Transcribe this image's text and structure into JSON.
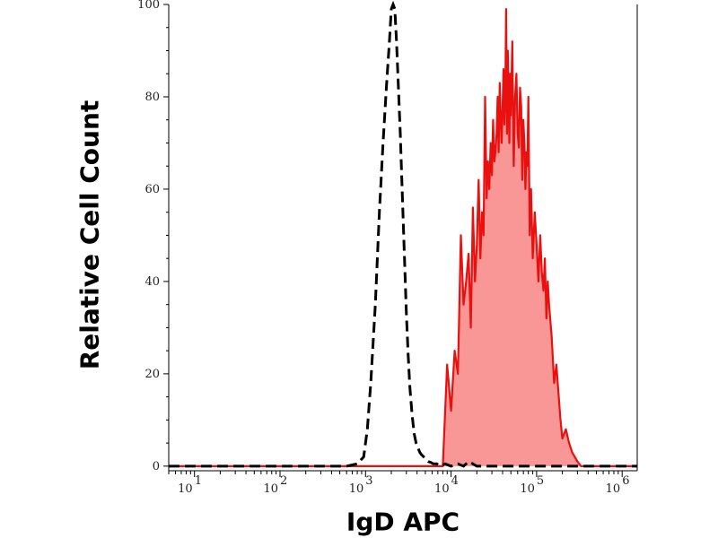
{
  "chart_data": {
    "type": "area",
    "title": "",
    "xlabel": "IgD APC",
    "ylabel": "Relative Cell Count",
    "x_scale": "log",
    "xlim": [
      5,
      1500000
    ],
    "ylim": [
      -1,
      100
    ],
    "x_ticks": [
      {
        "base": "10",
        "exp": "1",
        "value": 10
      },
      {
        "base": "10",
        "exp": "2",
        "value": 100
      },
      {
        "base": "10",
        "exp": "3",
        "value": 1000
      },
      {
        "base": "10",
        "exp": "4",
        "value": 10000
      },
      {
        "base": "10",
        "exp": "5",
        "value": 100000
      },
      {
        "base": "10",
        "exp": "6",
        "value": 1000000
      }
    ],
    "y_ticks": [
      "0",
      "20",
      "40",
      "60",
      "80",
      "100"
    ],
    "grid": false,
    "series": [
      {
        "style": "dashed",
        "color": "#000000",
        "filled": false,
        "x": [
          5,
          600,
          800,
          950,
          1050,
          1150,
          1300,
          1450,
          1600,
          1750,
          1900,
          2000,
          2100,
          2200,
          2300,
          2400,
          2550,
          2700,
          2850,
          3000,
          3150,
          3300,
          3500,
          3700,
          3900,
          4100,
          4300,
          4500,
          4800,
          5100,
          5400,
          5800,
          6200,
          6800,
          7500,
          8500,
          10000,
          12000,
          14000,
          16000,
          18000,
          20000,
          1500000
        ],
        "y": [
          0,
          0,
          0.5,
          2,
          8,
          18,
          35,
          55,
          70,
          82,
          92,
          99,
          100,
          99,
          92,
          84,
          72,
          58,
          45,
          33,
          24,
          17,
          11,
          7,
          5,
          4,
          3,
          2.5,
          2,
          1.5,
          1,
          0.8,
          0.5,
          0.5,
          0,
          0.5,
          0,
          0.5,
          0,
          1,
          0.5,
          0,
          0
        ]
      },
      {
        "style": "solid",
        "color": "#e8110f",
        "fill": "#f99696",
        "filled": true,
        "x": [
          5,
          8000,
          9000,
          10000,
          11000,
          12000,
          13000,
          14000,
          15000,
          16000,
          17000,
          18000,
          19000,
          20000,
          21000,
          22000,
          23000,
          24000,
          25000,
          26000,
          27000,
          28000,
          29000,
          30000,
          31000,
          32000,
          33000,
          34000,
          35000,
          36000,
          37000,
          38000,
          39000,
          40000,
          41000,
          42000,
          43000,
          44000,
          45000,
          46000,
          47000,
          48000,
          49000,
          50000,
          52000,
          54000,
          56000,
          58000,
          60000,
          62000,
          64000,
          66000,
          68000,
          70000,
          72000,
          74000,
          76000,
          78000,
          80000,
          83000,
          86000,
          90000,
          95000,
          100000,
          105000,
          110000,
          115000,
          120000,
          125000,
          130000,
          135000,
          140000,
          150000,
          160000,
          170000,
          180000,
          190000,
          200000,
          220000,
          240000,
          260000,
          280000,
          300000,
          330000,
          1500000
        ],
        "y": [
          0,
          0,
          22,
          12,
          25,
          20,
          50,
          35,
          40,
          46,
          30,
          56,
          40,
          48,
          62,
          45,
          55,
          50,
          80,
          58,
          66,
          60,
          70,
          63,
          75,
          66,
          68,
          72,
          80,
          68,
          83,
          75,
          70,
          78,
          86,
          74,
          80,
          99,
          72,
          90,
          81,
          70,
          85,
          76,
          92,
          65,
          80,
          85,
          72,
          69,
          82,
          78,
          62,
          75,
          70,
          60,
          68,
          65,
          80,
          50,
          60,
          45,
          55,
          48,
          40,
          50,
          42,
          38,
          45,
          32,
          40,
          35,
          28,
          18,
          22,
          16,
          10,
          6,
          8,
          5,
          3,
          2,
          1,
          0,
          0
        ]
      }
    ]
  }
}
